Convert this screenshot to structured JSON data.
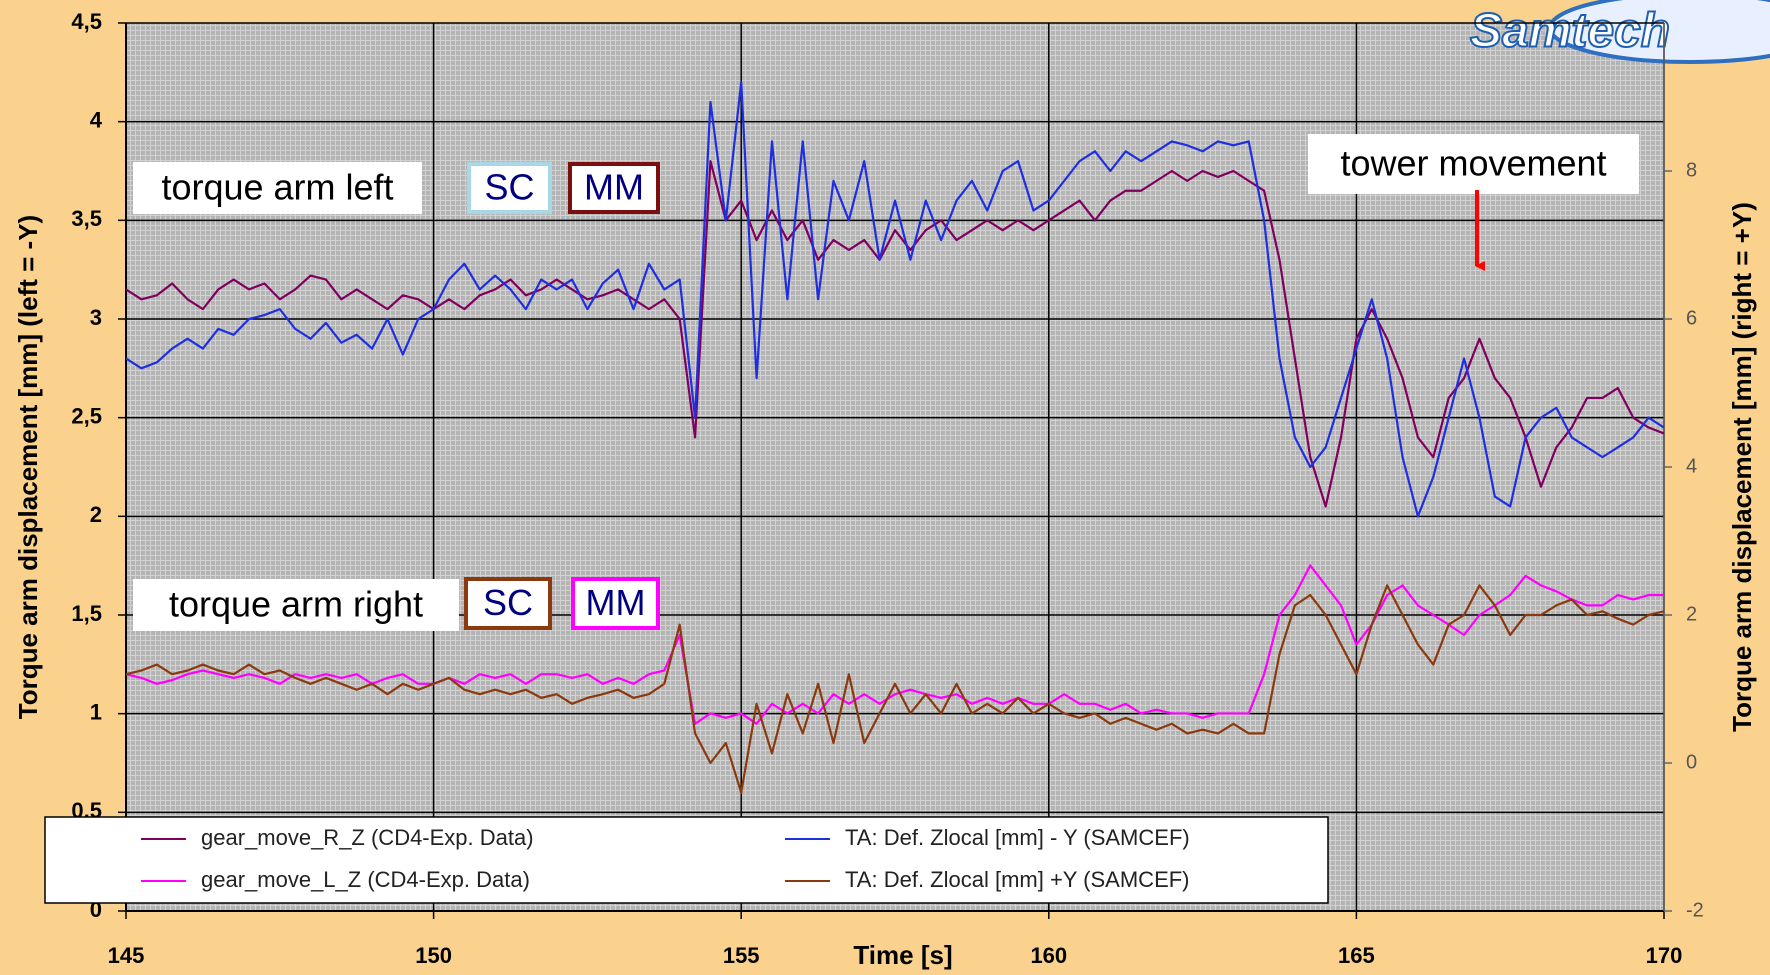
{
  "chart_data": {
    "type": "line",
    "logo": "Samtech",
    "x_label": "Time [s]",
    "y_label": "Torque arm displacement [mm] (left = -Y)",
    "y2_label": "Torque arm displacement [mm] (right = +Y)",
    "annotations": [
      "torque arm left",
      "SC",
      "MM",
      "torque arm right",
      "SC",
      "MM",
      "tower movement"
    ],
    "xlim": [
      145,
      170
    ],
    "xticks": [
      145,
      150,
      155,
      160,
      165,
      170
    ],
    "ylim": [
      0,
      4.5
    ],
    "yticks": [
      0,
      {
        "value": 0.5,
        "label": "0,5"
      },
      1,
      {
        "value": 1.5,
        "label": "1,5"
      },
      2,
      {
        "value": 2.5,
        "label": "2,5"
      },
      3,
      {
        "value": 3.5,
        "label": "3,5"
      },
      4,
      {
        "value": 4.5,
        "label": "4,5"
      }
    ],
    "y2lim": [
      -2,
      10
    ],
    "y2ticks": [
      -2,
      0,
      2,
      4,
      6,
      8
    ],
    "grid": true,
    "legend": "bottom-left",
    "x": [
      145,
      145.25,
      145.5,
      145.75,
      146,
      146.25,
      146.5,
      146.75,
      147,
      147.25,
      147.5,
      147.75,
      148,
      148.25,
      148.5,
      148.75,
      149,
      149.25,
      149.5,
      149.75,
      150,
      150.25,
      150.5,
      150.75,
      151,
      151.25,
      151.5,
      151.75,
      152,
      152.25,
      152.5,
      152.75,
      153,
      153.25,
      153.5,
      153.75,
      154,
      154.25,
      154.5,
      154.75,
      155,
      155.25,
      155.5,
      155.75,
      156,
      156.25,
      156.5,
      156.75,
      157,
      157.25,
      157.5,
      157.75,
      158,
      158.25,
      158.5,
      158.75,
      159,
      159.25,
      159.5,
      159.75,
      160,
      160.25,
      160.5,
      160.75,
      161,
      161.25,
      161.5,
      161.75,
      162,
      162.25,
      162.5,
      162.75,
      163,
      163.25,
      163.5,
      163.75,
      164,
      164.25,
      164.5,
      164.75,
      165,
      165.25,
      165.5,
      165.75,
      166,
      166.25,
      166.5,
      166.75,
      167,
      167.25,
      167.5,
      167.75,
      168,
      168.25,
      168.5,
      168.75,
      169,
      169.25,
      169.5,
      169.75,
      170
    ],
    "series": [
      {
        "name": "gear_move_R_Z  (CD4-Exp. Data)",
        "color": "#800060",
        "values": [
          3.15,
          3.1,
          3.12,
          3.18,
          3.1,
          3.05,
          3.15,
          3.2,
          3.15,
          3.18,
          3.1,
          3.15,
          3.22,
          3.2,
          3.1,
          3.15,
          3.1,
          3.05,
          3.12,
          3.1,
          3.05,
          3.1,
          3.05,
          3.12,
          3.15,
          3.2,
          3.12,
          3.15,
          3.2,
          3.15,
          3.1,
          3.12,
          3.15,
          3.1,
          3.05,
          3.1,
          3.0,
          2.4,
          3.8,
          3.5,
          3.6,
          3.4,
          3.55,
          3.4,
          3.5,
          3.3,
          3.4,
          3.35,
          3.4,
          3.3,
          3.45,
          3.35,
          3.45,
          3.5,
          3.4,
          3.45,
          3.5,
          3.45,
          3.5,
          3.45,
          3.5,
          3.55,
          3.6,
          3.5,
          3.6,
          3.65,
          3.65,
          3.7,
          3.75,
          3.7,
          3.75,
          3.72,
          3.75,
          3.7,
          3.65,
          3.3,
          2.8,
          2.3,
          2.05,
          2.4,
          2.9,
          3.05,
          2.9,
          2.7,
          2.4,
          2.3,
          2.6,
          2.7,
          2.9,
          2.7,
          2.6,
          2.4,
          2.15,
          2.35,
          2.45,
          2.6,
          2.6,
          2.65,
          2.5,
          2.45,
          2.42
        ]
      },
      {
        "name": "gear_move_L_Z  (CD4-Exp. Data)",
        "color": "#ff00ff",
        "axis": "y2",
        "values": [
          1.2,
          1.15,
          1.07,
          1.12,
          1.2,
          1.25,
          1.2,
          1.15,
          1.2,
          1.15,
          1.07,
          1.2,
          1.15,
          1.2,
          1.15,
          1.2,
          1.07,
          1.15,
          1.2,
          1.07,
          1.07,
          1.15,
          1.07,
          1.2,
          1.15,
          1.2,
          1.07,
          1.2,
          1.2,
          1.15,
          1.2,
          1.07,
          1.15,
          1.07,
          1.2,
          1.25,
          1.73,
          0.53,
          0.67,
          0.61,
          0.67,
          0.53,
          0.8,
          0.67,
          0.8,
          0.67,
          0.93,
          0.8,
          0.93,
          0.8,
          0.93,
          0.99,
          0.93,
          0.88,
          0.93,
          0.8,
          0.88,
          0.8,
          0.88,
          0.8,
          0.8,
          0.93,
          0.8,
          0.8,
          0.72,
          0.8,
          0.67,
          0.72,
          0.67,
          0.67,
          0.61,
          0.67,
          0.67,
          0.67,
          1.2,
          2.0,
          2.27,
          2.67,
          2.4,
          2.13,
          1.6,
          1.87,
          2.27,
          2.4,
          2.13,
          2.0,
          1.87,
          1.73,
          2.0,
          2.13,
          2.27,
          2.53,
          2.4,
          2.32,
          2.21,
          2.13,
          2.13,
          2.27,
          2.21,
          2.27,
          2.27
        ]
      },
      {
        "name": "TA: Def. Zlocal [mm] - Y (SAMCEF)",
        "color": "#1f2fe0",
        "values": [
          2.8,
          2.75,
          2.78,
          2.85,
          2.9,
          2.85,
          2.95,
          2.92,
          3.0,
          3.02,
          3.05,
          2.95,
          2.9,
          2.98,
          2.88,
          2.92,
          2.85,
          3.0,
          2.82,
          3.0,
          3.05,
          3.2,
          3.28,
          3.15,
          3.22,
          3.15,
          3.05,
          3.2,
          3.15,
          3.2,
          3.05,
          3.18,
          3.25,
          3.05,
          3.28,
          3.15,
          3.2,
          2.5,
          4.1,
          3.5,
          4.2,
          2.7,
          3.9,
          3.1,
          3.9,
          3.1,
          3.7,
          3.5,
          3.8,
          3.3,
          3.6,
          3.3,
          3.6,
          3.4,
          3.6,
          3.7,
          3.55,
          3.75,
          3.8,
          3.55,
          3.6,
          3.7,
          3.8,
          3.85,
          3.75,
          3.85,
          3.8,
          3.85,
          3.9,
          3.88,
          3.85,
          3.9,
          3.88,
          3.9,
          3.5,
          2.8,
          2.4,
          2.25,
          2.35,
          2.6,
          2.85,
          3.1,
          2.8,
          2.3,
          2.0,
          2.2,
          2.5,
          2.8,
          2.5,
          2.1,
          2.05,
          2.4,
          2.5,
          2.55,
          2.4,
          2.35,
          2.3,
          2.35,
          2.4,
          2.5,
          2.45
        ]
      },
      {
        "name": "TA: Def. Zlocal [mm] +Y (SAMCEF)",
        "color": "#8b3a10",
        "axis": "y2",
        "values": [
          1.2,
          1.25,
          1.33,
          1.2,
          1.25,
          1.33,
          1.25,
          1.2,
          1.33,
          1.2,
          1.25,
          1.15,
          1.07,
          1.15,
          1.07,
          0.99,
          1.07,
          0.93,
          1.07,
          0.99,
          1.07,
          1.15,
          0.99,
          0.93,
          0.99,
          0.93,
          0.99,
          0.88,
          0.93,
          0.8,
          0.88,
          0.93,
          0.99,
          0.88,
          0.93,
          1.07,
          1.87,
          0.4,
          0,
          0.27,
          -0.4,
          0.8,
          0.13,
          0.93,
          0.4,
          1.07,
          0.27,
          1.2,
          0.27,
          0.67,
          1.07,
          0.67,
          0.93,
          0.67,
          1.07,
          0.67,
          0.8,
          0.67,
          0.88,
          0.67,
          0.8,
          0.67,
          0.61,
          0.67,
          0.53,
          0.61,
          0.53,
          0.45,
          0.53,
          0.4,
          0.45,
          0.4,
          0.53,
          0.4,
          0.4,
          1.47,
          2.13,
          2.27,
          2.0,
          1.6,
          1.2,
          1.87,
          2.4,
          2.0,
          1.6,
          1.33,
          1.87,
          2.0,
          2.4,
          2.13,
          1.73,
          2.0,
          2.0,
          2.13,
          2.21,
          2.0,
          2.05,
          1.95,
          1.87,
          2.0,
          2.05
        ]
      }
    ]
  }
}
